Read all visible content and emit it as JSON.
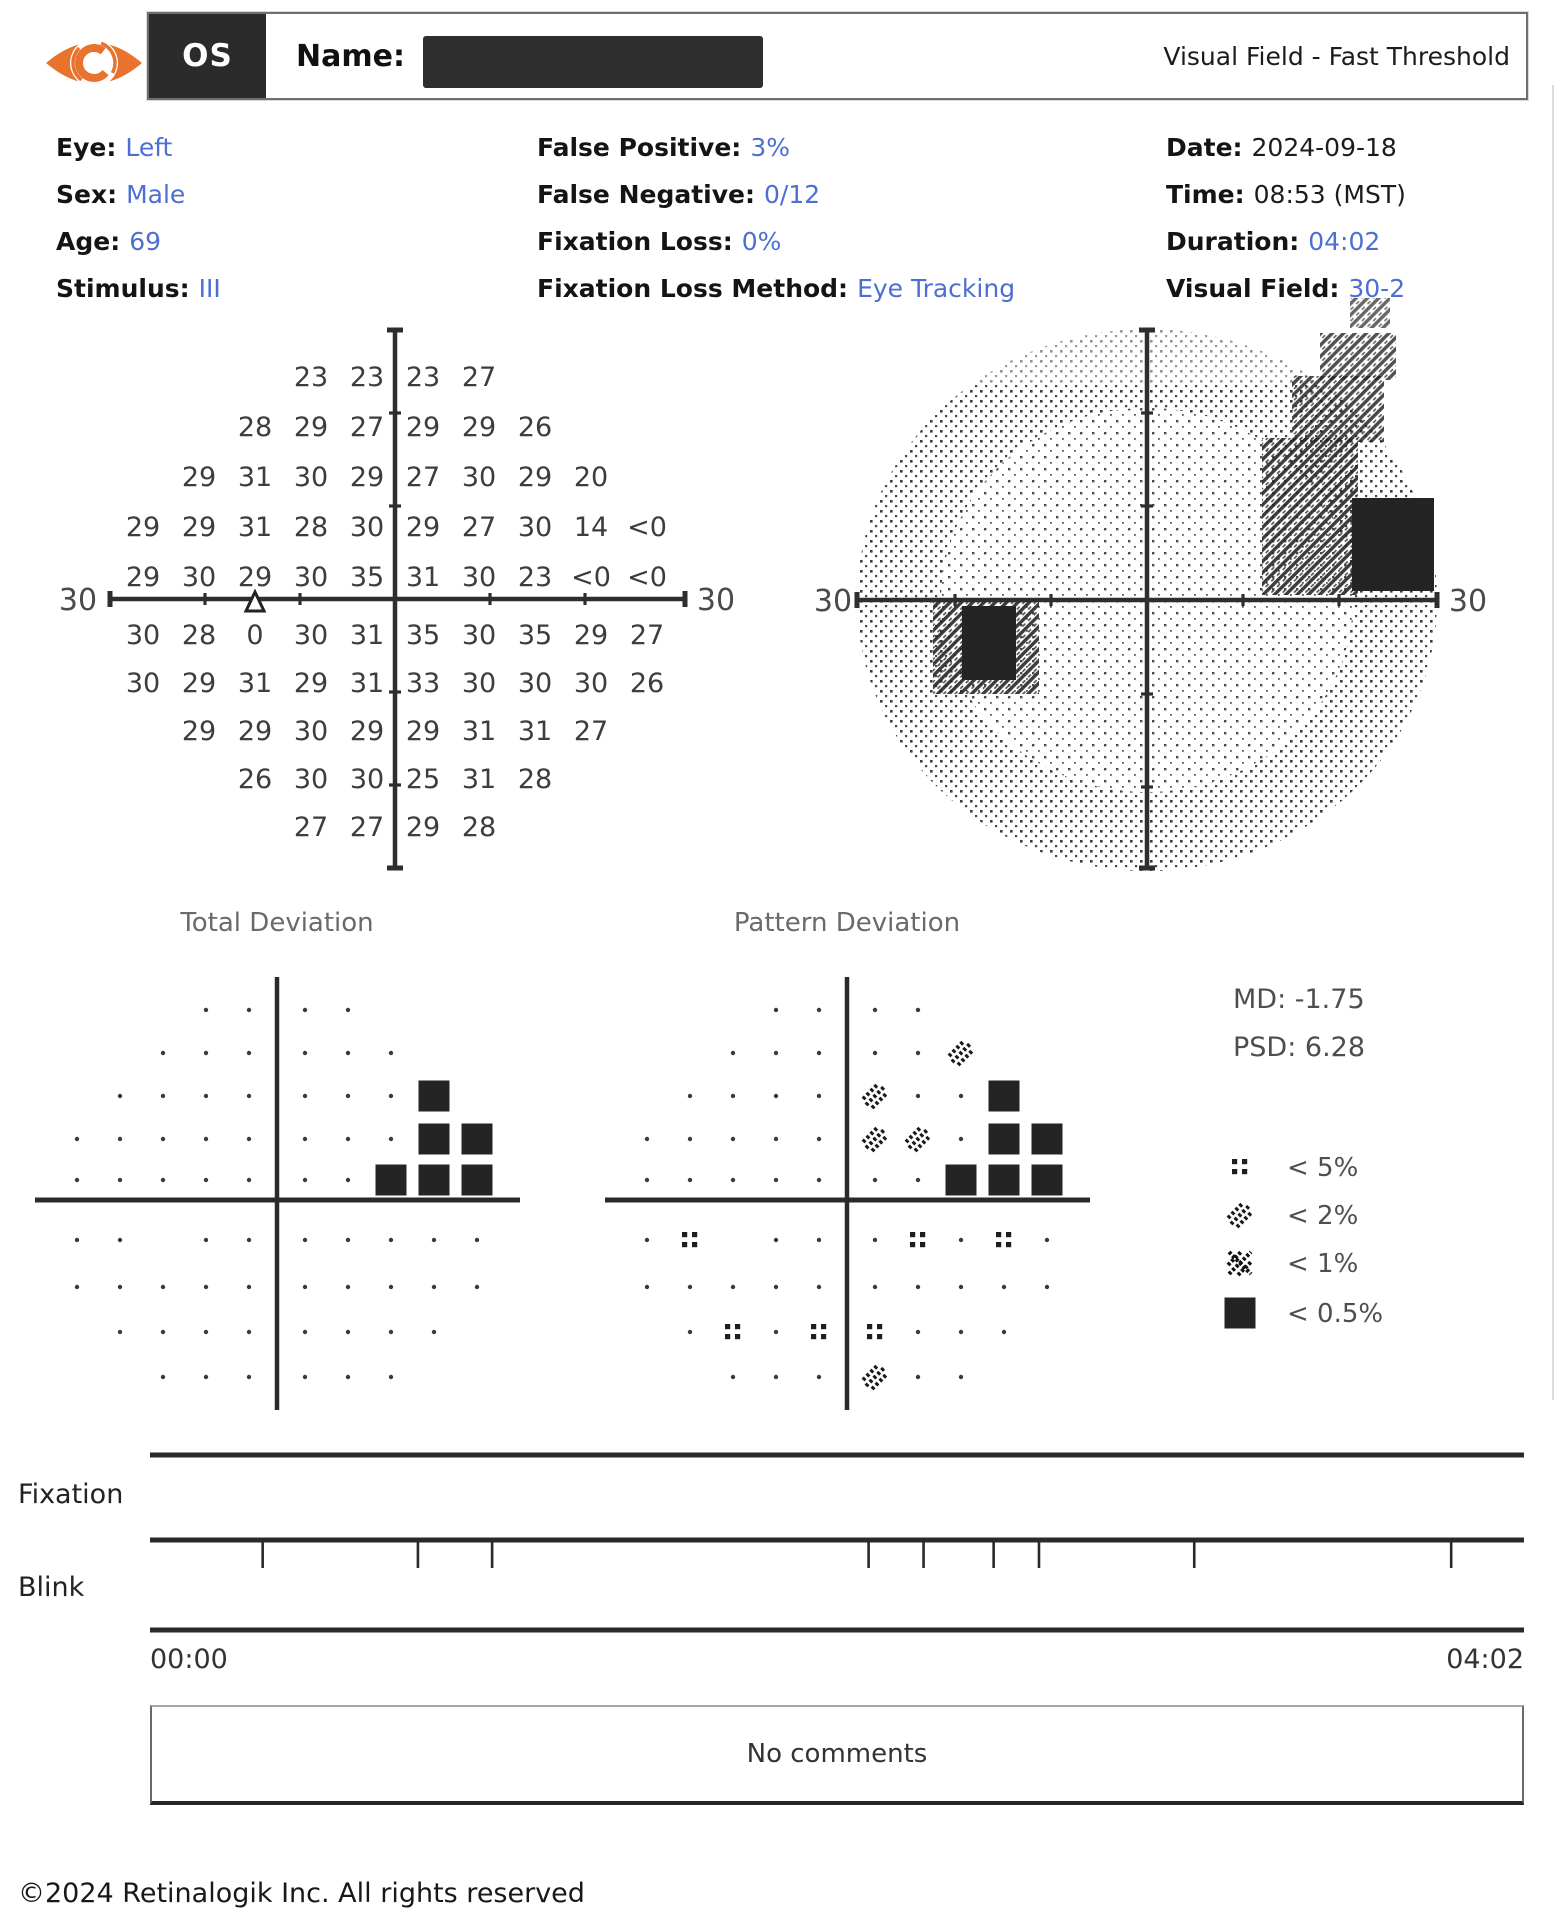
{
  "accent_color": "#4d6ed3",
  "logo_color": "#e8732e",
  "header": {
    "os": "OS",
    "name_label": "Name:",
    "title": "Visual Field - Fast Threshold"
  },
  "info": {
    "columns": [
      [
        {
          "label": "Eye",
          "value": "Left",
          "accent": true
        },
        {
          "label": "Sex",
          "value": "Male",
          "accent": true
        },
        {
          "label": "Age",
          "value": "69",
          "accent": true
        },
        {
          "label": "Stimulus",
          "value": "III",
          "accent": true
        }
      ],
      [
        {
          "label": "False Positive",
          "value": "3%",
          "accent": true
        },
        {
          "label": "False Negative",
          "value": "0/12",
          "accent": true
        },
        {
          "label": "Fixation Loss",
          "value": "0%",
          "accent": true
        },
        {
          "label": "Fixation Loss Method",
          "value": "Eye Tracking",
          "accent": true
        }
      ],
      [
        {
          "label": "Date",
          "value": "2024-09-18",
          "accent": false
        },
        {
          "label": "Time",
          "value": "08:53 (MST)",
          "accent": false
        },
        {
          "label": "Duration",
          "value": "04:02",
          "accent": true
        },
        {
          "label": "Visual Field",
          "value": "30-2",
          "accent": true
        }
      ]
    ]
  },
  "threshold_plot": {
    "axis_left": "30",
    "axis_right": "30",
    "rows": [
      [
        "23",
        "23",
        "23",
        "27"
      ],
      [
        "28",
        "29",
        "27",
        "29",
        "29",
        "26"
      ],
      [
        "29",
        "31",
        "30",
        "29",
        "27",
        "30",
        "29",
        "20"
      ],
      [
        "29",
        "29",
        "31",
        "28",
        "30",
        "29",
        "27",
        "30",
        "14",
        "<0"
      ],
      [
        "29",
        "30",
        "29",
        "30",
        "35",
        "31",
        "30",
        "23",
        "<0",
        "<0"
      ],
      [
        "30",
        "28",
        "0",
        "30",
        "31",
        "35",
        "30",
        "35",
        "29",
        "27"
      ],
      [
        "30",
        "29",
        "31",
        "29",
        "31",
        "33",
        "30",
        "30",
        "30",
        "26"
      ],
      [
        "29",
        "29",
        "30",
        "29",
        "29",
        "31",
        "31",
        "27"
      ],
      [
        "26",
        "30",
        "30",
        "25",
        "31",
        "28"
      ],
      [
        "27",
        "27",
        "29",
        "28"
      ]
    ]
  },
  "grayscale_plot": {
    "axis_left": "30",
    "axis_right": "30"
  },
  "deviation": {
    "total": {
      "title": "Total Deviation",
      "rows": [
        [
          "d",
          "d",
          "d",
          "d"
        ],
        [
          "d",
          "d",
          "d",
          "d",
          "d",
          "d"
        ],
        [
          "d",
          "d",
          "d",
          "d",
          "d",
          "d",
          "d",
          "s"
        ],
        [
          "d",
          "d",
          "d",
          "d",
          "d",
          "d",
          "d",
          "d",
          "s",
          "s"
        ],
        [
          "d",
          "d",
          "d",
          "d",
          "d",
          "d",
          "d",
          "s",
          "s",
          "s"
        ],
        [
          "d",
          "d",
          null,
          "d",
          "d",
          "d",
          "d",
          "d",
          "d",
          "d"
        ],
        [
          "d",
          "d",
          "d",
          "d",
          "d",
          "d",
          "d",
          "d",
          "d",
          "d"
        ],
        [
          "d",
          "d",
          "d",
          "d",
          "d",
          "d",
          "d",
          "d"
        ],
        [
          "d",
          "d",
          "d",
          "d",
          "d",
          "d"
        ],
        []
      ]
    },
    "pattern": {
      "title": "Pattern Deviation",
      "rows": [
        [
          "d",
          "d",
          "d",
          "d"
        ],
        [
          "d",
          "d",
          "d",
          "d",
          "d",
          "h"
        ],
        [
          "d",
          "d",
          "d",
          "d",
          "h",
          "d",
          "d",
          "s"
        ],
        [
          "d",
          "d",
          "d",
          "d",
          "d",
          "h",
          "h",
          "d",
          "s",
          "s"
        ],
        [
          "d",
          "d",
          "d",
          "d",
          "d",
          "d",
          "d",
          "s",
          "s",
          "s"
        ],
        [
          "d",
          "c",
          null,
          "d",
          "d",
          "d",
          "c",
          "d",
          "c",
          "d"
        ],
        [
          "d",
          "d",
          "d",
          "d",
          "d",
          "d",
          "d",
          "d",
          "d",
          "d"
        ],
        [
          "d",
          "c",
          "d",
          "c",
          "c",
          "d",
          "d",
          "d"
        ],
        [
          "d",
          "d",
          "d",
          "h",
          "d",
          "d"
        ],
        []
      ]
    }
  },
  "stats": {
    "md_label": "MD:",
    "md_value": "-1.75",
    "psd_label": "PSD:",
    "psd_value": "6.28"
  },
  "legend": [
    {
      "symbol": "dot-cluster",
      "label": "< 5%"
    },
    {
      "symbol": "diagonal-hatch",
      "label": "< 2%"
    },
    {
      "symbol": "cross-hatch",
      "label": "< 1%"
    },
    {
      "symbol": "solid-square",
      "label": "< 0.5%"
    }
  ],
  "timeline": {
    "fixation_label": "Fixation",
    "blink_label": "Blink",
    "time_start": "00:00",
    "time_end": "04:02",
    "blink_ticks": [
      0.082,
      0.195,
      0.249,
      0.523,
      0.563,
      0.614,
      0.647,
      0.76,
      0.947
    ]
  },
  "comments": "No comments",
  "footer": "©2024 Retinalogik Inc. All rights reserved"
}
